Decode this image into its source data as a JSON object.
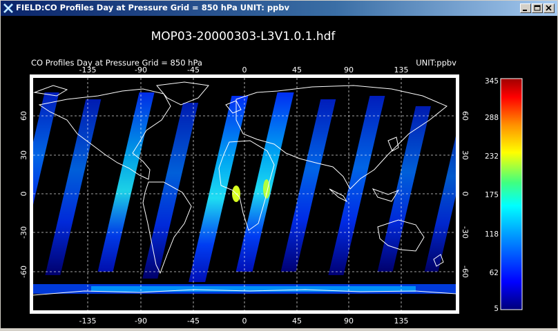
{
  "window": {
    "title": "FIELD:CO Profiles Day at Pressure Grid =  850 hPa   UNIT: ppbv",
    "app_icon": "idl-x-icon",
    "controls": [
      "minimize-icon",
      "maximize-icon",
      "close-icon"
    ]
  },
  "plot": {
    "file_title": "MOP03-20000303-L3V1.0.1.hdf",
    "field_label": "CO Profiles Day at Pressure Grid =  850 hPa",
    "unit_label": "UNIT:ppbv",
    "lon_ticks": [
      "-135",
      "-90",
      "-45",
      "0",
      "45",
      "90",
      "135"
    ],
    "lat_ticks": [
      "60",
      "30",
      "0",
      "-30",
      "-60"
    ],
    "colorbar_ticks": [
      "345",
      "288",
      "232",
      "175",
      "118",
      "62",
      "5"
    ],
    "colors": {
      "background": "#000000",
      "coastline": "#ffffff",
      "grid": "#ffffff"
    }
  }
}
